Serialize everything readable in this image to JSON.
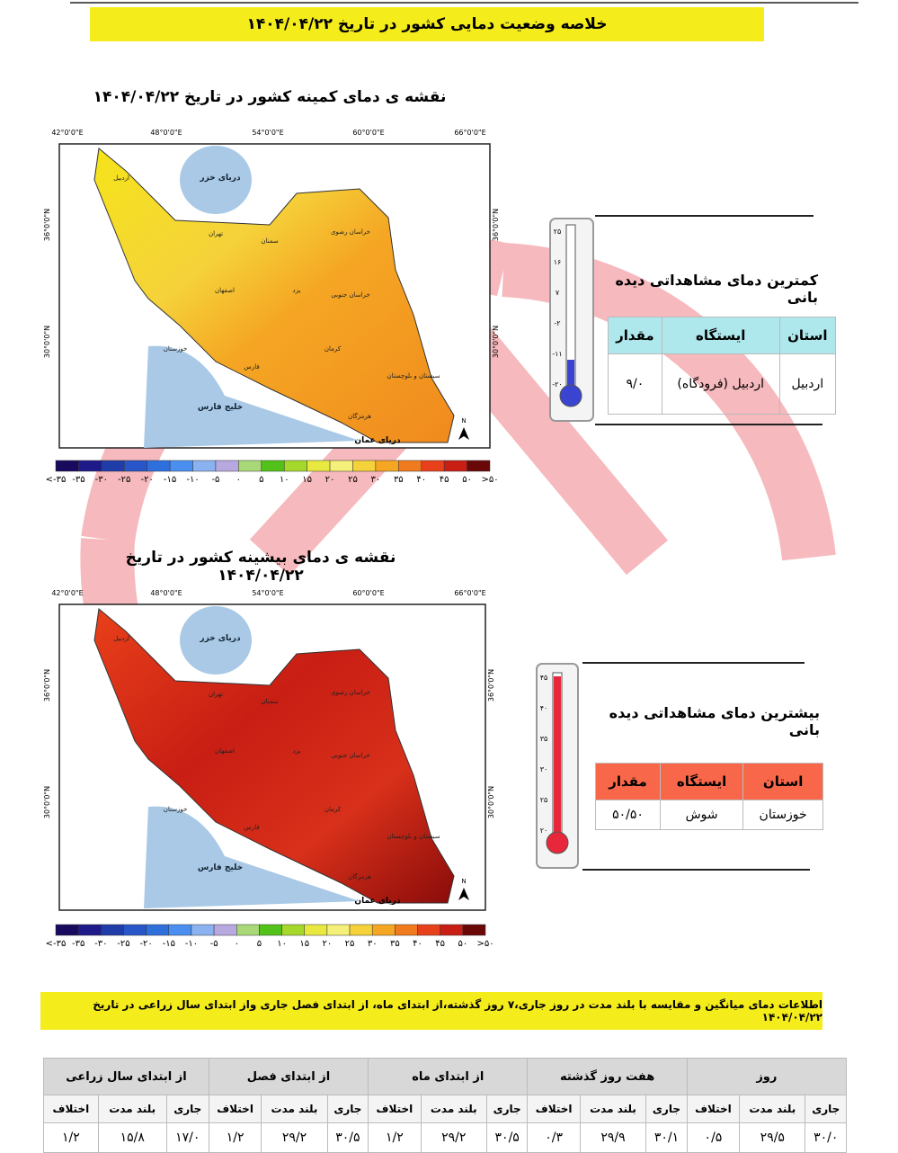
{
  "header": {
    "title": "خلاصه وضعیت دمایی کشور در تاریخ ۱۴۰۴/۰۴/۲۲"
  },
  "map_axes": {
    "lon": [
      "42°0'0\"E",
      "48°0'0\"E",
      "54°0'0\"E",
      "60°0'0\"E",
      "66°0'0\"E"
    ],
    "lat": [
      "36°0'0\"N",
      "30°0'0\"N"
    ],
    "north": "N"
  },
  "legend": {
    "labels": [
      "<-۳۵",
      "-۳۵",
      "-۳۰",
      "-۲۵",
      "-۲۰",
      "-۱۵",
      "-۱۰",
      "-۵",
      "۰",
      "۵",
      "۱۰",
      "۱۵",
      "۲۰",
      "۲۵",
      "۳۰",
      "۳۵",
      "۴۰",
      "۴۵",
      "۵۰",
      ">۵۰"
    ],
    "colors": [
      "#1a0a5e",
      "#1f1a8a",
      "#1f3ca8",
      "#2856c8",
      "#2f6fdc",
      "#4a8ff0",
      "#8ab2f0",
      "#b7a8e0",
      "#a8d878",
      "#52c21a",
      "#a6d82c",
      "#e8e840",
      "#f5f07a",
      "#f5d23a",
      "#f5a623",
      "#f07a1e",
      "#e8401a",
      "#c81e14",
      "#6a0808"
    ]
  },
  "seas": [
    "دریای خزر",
    "خلیج فارس",
    "دریای عمان"
  ],
  "provinces": [
    "اردبیل",
    "تهران",
    "سمنان",
    "خراسان رضوی",
    "اصفهان",
    "یزد",
    "کرمان",
    "فارس",
    "خوزستان",
    "هرمزگان",
    "سیستان و بلوچستان",
    "خراسان جنوبی"
  ],
  "min_map": {
    "title": "نقشه ی دمای کمینه کشور در تاریخ ۱۴۰۴/۰۴/۲۲"
  },
  "max_map": {
    "title": "نقشه ی دمای بیشینه کشور در تاریخ ۱۴۰۴/۰۴/۲۲"
  },
  "min_box": {
    "ticks": [
      "۲۵",
      "۱۶",
      "۷",
      "-۲",
      "-۱۱",
      "-۲۰"
    ],
    "title": "کمترین دمای مشاهداتی دیده بانی",
    "header": [
      "استان",
      "ایستگاه",
      "مقدار"
    ],
    "row": [
      "اردبیل",
      "اردبیل (فرودگاه)",
      "۹/۰"
    ]
  },
  "max_box": {
    "ticks": [
      "۴۵",
      "۴۰",
      "۳۵",
      "۳۰",
      "۲۵",
      "۲۰"
    ],
    "title": "بیشترین دمای مشاهداتی دیده بانی",
    "header": [
      "استان",
      "ایستگاه",
      "مقدار"
    ],
    "row": [
      "خوزستان",
      "شوش",
      "۵۰/۵۰"
    ]
  },
  "info": {
    "title": "اطلاعات دمای میانگین و مقایسه با بلند مدت در روز جاری،۷ روز گذشته،از ابتدای ماه، از ابتدای فصل جاری واز ابتدای سال زراعی در تاریخ ۱۴۰۴/۰۴/۲۲"
  },
  "table": {
    "groups": [
      "روز",
      "هفت روز گذشته",
      "از ابتدای ماه",
      "از ابتدای فصل",
      "از ابتدای سال زراعی"
    ],
    "sub": [
      "جاری",
      "بلند مدت",
      "اختلاف"
    ],
    "values": [
      [
        "۳۰/۰",
        "۲۹/۵",
        "۰/۵"
      ],
      [
        "۳۰/۱",
        "۲۹/۹",
        "۰/۳"
      ],
      [
        "۳۰/۵",
        "۲۹/۲",
        "۱/۲"
      ],
      [
        "۳۰/۵",
        "۲۹/۲",
        "۱/۲"
      ],
      [
        "۱۷/۰",
        "۱۵/۸",
        "۱/۲"
      ]
    ]
  }
}
